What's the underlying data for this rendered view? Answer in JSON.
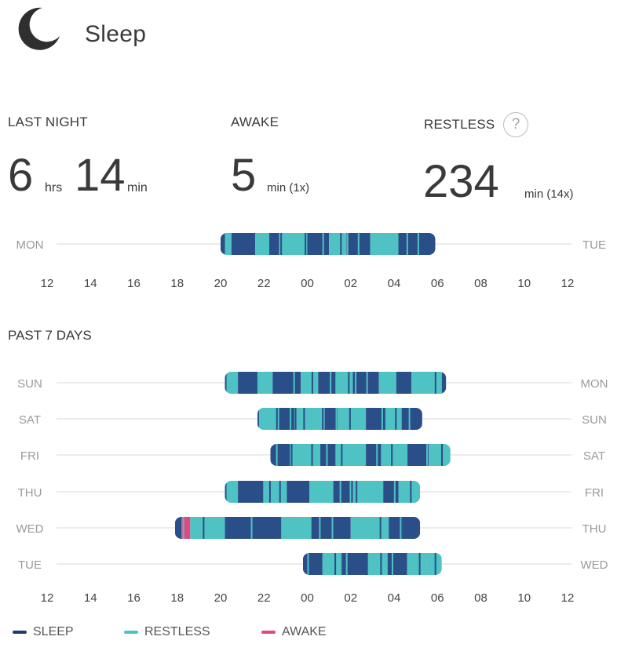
{
  "header": {
    "title": "Sleep",
    "icon": "moon-icon"
  },
  "stats": {
    "last_night": {
      "label": "LAST NIGHT",
      "hours": "6",
      "hours_unit": "hrs",
      "minutes": "14",
      "minutes_unit": "min"
    },
    "awake": {
      "label": "AWAKE",
      "value": "5",
      "unit": "min (1x)"
    },
    "restless": {
      "label": "RESTLESS",
      "value": "234",
      "unit": "min (14x)",
      "help": "?"
    }
  },
  "past_label": "PAST 7 DAYS",
  "legend": [
    {
      "key": "sleep",
      "label": "SLEEP",
      "color": "#1f3a6e"
    },
    {
      "key": "restless",
      "label": "RESTLESS",
      "color": "#4ec2c4"
    },
    {
      "key": "awake",
      "label": "AWAKE",
      "color": "#e0487f"
    }
  ],
  "chart_data": {
    "type": "timeline",
    "x_ticks": [
      "12",
      "14",
      "16",
      "18",
      "20",
      "22",
      "00",
      "02",
      "04",
      "06",
      "08",
      "10",
      "12"
    ],
    "x_range_hours": [
      12,
      36
    ],
    "colors": {
      "sleep": "#2a4e88",
      "restless": "#4fc2c4",
      "awake": "#e0487f"
    },
    "last_night": {
      "start_day": "MON",
      "end_day": "TUE",
      "start": 20,
      "end": 29.9,
      "segments": [
        [
          20.0,
          20.2,
          "sleep"
        ],
        [
          20.2,
          20.5,
          "restless"
        ],
        [
          20.5,
          21.6,
          "sleep"
        ],
        [
          21.6,
          22.3,
          "restless"
        ],
        [
          22.3,
          22.7,
          "sleep"
        ],
        [
          22.7,
          24.0,
          "restless"
        ],
        [
          24.0,
          25.0,
          "sleep"
        ],
        [
          25.0,
          25.8,
          "restless"
        ],
        [
          25.8,
          26.9,
          "sleep"
        ],
        [
          26.9,
          28.2,
          "restless"
        ],
        [
          28.2,
          29.9,
          "sleep"
        ]
      ]
    },
    "past_7_days": [
      {
        "start_day": "SUN",
        "end_day": "MON",
        "start": 20.2,
        "end": 30.4,
        "segments": [
          [
            20.2,
            20.8,
            "restless"
          ],
          [
            20.8,
            21.7,
            "sleep"
          ],
          [
            21.7,
            22.4,
            "restless"
          ],
          [
            22.4,
            23.7,
            "sleep"
          ],
          [
            23.7,
            24.5,
            "restless"
          ],
          [
            24.5,
            25.3,
            "sleep"
          ],
          [
            25.3,
            26.1,
            "restless"
          ],
          [
            26.1,
            27.3,
            "sleep"
          ],
          [
            27.3,
            28.1,
            "restless"
          ],
          [
            28.1,
            28.8,
            "sleep"
          ],
          [
            28.8,
            30.2,
            "restless"
          ],
          [
            30.2,
            30.4,
            "sleep"
          ]
        ]
      },
      {
        "start_day": "SAT",
        "end_day": "SUN",
        "start": 21.7,
        "end": 29.3,
        "segments": [
          [
            21.7,
            22.7,
            "restless"
          ],
          [
            22.7,
            23.4,
            "sleep"
          ],
          [
            23.4,
            24.8,
            "restless"
          ],
          [
            24.8,
            25.4,
            "sleep"
          ],
          [
            25.4,
            26.7,
            "restless"
          ],
          [
            26.7,
            27.6,
            "sleep"
          ],
          [
            27.6,
            28.3,
            "restless"
          ],
          [
            28.3,
            29.3,
            "sleep"
          ]
        ]
      },
      {
        "start_day": "FRI",
        "end_day": "SAT",
        "start": 22.3,
        "end": 30.6,
        "segments": [
          [
            22.3,
            23.2,
            "sleep"
          ],
          [
            23.2,
            24.6,
            "restless"
          ],
          [
            24.6,
            25.3,
            "sleep"
          ],
          [
            25.3,
            26.7,
            "restless"
          ],
          [
            26.7,
            27.4,
            "sleep"
          ],
          [
            27.4,
            28.6,
            "restless"
          ],
          [
            28.6,
            29.6,
            "sleep"
          ],
          [
            29.6,
            30.6,
            "restless"
          ]
        ]
      },
      {
        "start_day": "THU",
        "end_day": "FRI",
        "start": 20.2,
        "end": 29.2,
        "segments": [
          [
            20.2,
            20.8,
            "restless"
          ],
          [
            20.8,
            22.0,
            "sleep"
          ],
          [
            22.0,
            23.0,
            "restless"
          ],
          [
            23.0,
            24.1,
            "sleep"
          ],
          [
            24.1,
            25.2,
            "restless"
          ],
          [
            25.2,
            26.1,
            "sleep"
          ],
          [
            26.1,
            27.5,
            "restless"
          ],
          [
            27.5,
            28.2,
            "sleep"
          ],
          [
            28.2,
            29.2,
            "restless"
          ]
        ]
      },
      {
        "start_day": "WED",
        "end_day": "THU",
        "start": 17.9,
        "end": 29.2,
        "segments": [
          [
            17.9,
            18.2,
            "sleep"
          ],
          [
            18.2,
            18.6,
            "awake"
          ],
          [
            18.6,
            19.2,
            "restless"
          ],
          [
            19.2,
            20.2,
            "restless"
          ],
          [
            20.2,
            22.8,
            "sleep"
          ],
          [
            22.8,
            24.2,
            "restless"
          ],
          [
            24.2,
            26.0,
            "sleep"
          ],
          [
            26.0,
            27.7,
            "restless"
          ],
          [
            27.7,
            28.4,
            "sleep"
          ],
          [
            28.4,
            29.2,
            "sleep"
          ]
        ]
      },
      {
        "start_day": "TUE",
        "end_day": "WED",
        "start": 23.8,
        "end": 30.2,
        "segments": [
          [
            23.8,
            24.7,
            "sleep"
          ],
          [
            24.7,
            25.6,
            "restless"
          ],
          [
            25.6,
            26.8,
            "sleep"
          ],
          [
            26.8,
            27.7,
            "restless"
          ],
          [
            27.7,
            28.6,
            "sleep"
          ],
          [
            28.6,
            29.5,
            "restless"
          ],
          [
            29.5,
            30.2,
            "restless"
          ]
        ]
      }
    ]
  }
}
